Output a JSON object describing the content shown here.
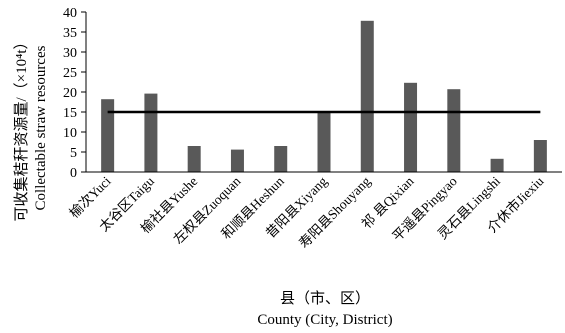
{
  "chart_data": {
    "type": "bar",
    "title": "",
    "categories": [
      "榆次Yuci",
      "太谷区Taigu",
      "榆社县Yushe",
      "左权县Zuoquan",
      "和顺县Heshun",
      "昔阳县Xiyang",
      "寿阳县Shouyang",
      "祁 县Qixian",
      "平遥县Pingyao",
      "灵石县Lingshi",
      "介休市Jiexiu"
    ],
    "values": [
      18.2,
      19.6,
      6.5,
      5.6,
      6.5,
      15.0,
      37.8,
      22.3,
      20.7,
      3.3,
      8.0
    ],
    "reference_line": {
      "value": 15.0
    },
    "xlabel_cn": "县（市、区）",
    "xlabel_en": "County (City, District)",
    "ylabel_cn": "可收集秸秆资源量/（×10⁴t）",
    "ylabel_en": "Collectable straw resources",
    "ylim": [
      0,
      40
    ],
    "yticks": [
      0,
      5,
      10,
      15,
      20,
      25,
      30,
      35,
      40
    ],
    "colors": {
      "bar": "#595959",
      "reference_line": "#000000",
      "axis": "#000000"
    },
    "grid": false,
    "legend": "none"
  }
}
